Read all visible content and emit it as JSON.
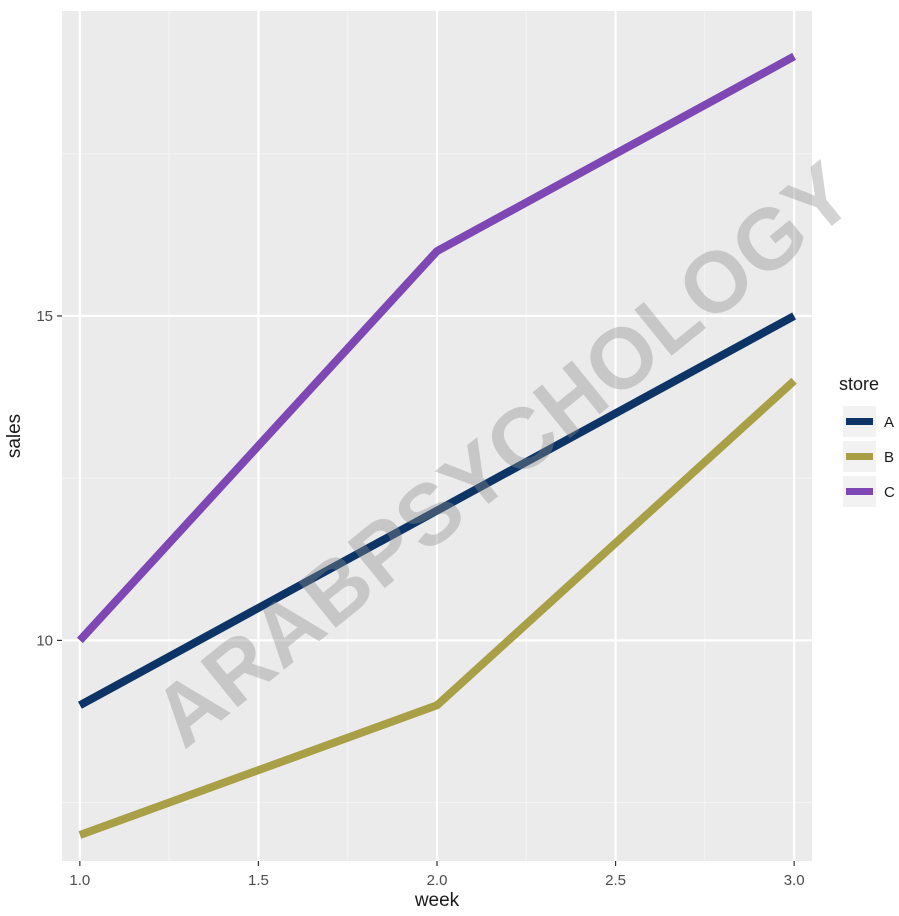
{
  "chart_data": {
    "type": "line",
    "title": "",
    "xlabel": "week",
    "ylabel": "sales",
    "x": [
      1.0,
      2.0,
      3.0
    ],
    "xlim": [
      0.95,
      3.05
    ],
    "ylim": [
      6.6,
      19.7
    ],
    "x_ticks": [
      1.0,
      1.5,
      2.0,
      2.5,
      3.0
    ],
    "x_tick_labels": [
      "1.0",
      "1.5",
      "2.0",
      "2.5",
      "3.0"
    ],
    "y_ticks": [
      10,
      15
    ],
    "y_tick_labels": [
      "10",
      "15"
    ],
    "grid": true,
    "legend": {
      "title": "store",
      "placement": "right"
    },
    "series": [
      {
        "name": "A",
        "values": [
          9,
          12,
          15
        ],
        "color": "#0c3466"
      },
      {
        "name": "B",
        "values": [
          7,
          9,
          14
        ],
        "color": "#a99f47"
      },
      {
        "name": "C",
        "values": [
          10,
          16,
          19
        ],
        "color": "#7e47b4"
      }
    ],
    "colors": {
      "panel_background": "#ebebeb",
      "grid_major": "#ffffff",
      "grid_minor": "#f4f4f4",
      "axis_text": "#4d4d4d",
      "axis_title": "#1a1a1a"
    }
  },
  "watermark": "ARABPSYCHOLOGY"
}
